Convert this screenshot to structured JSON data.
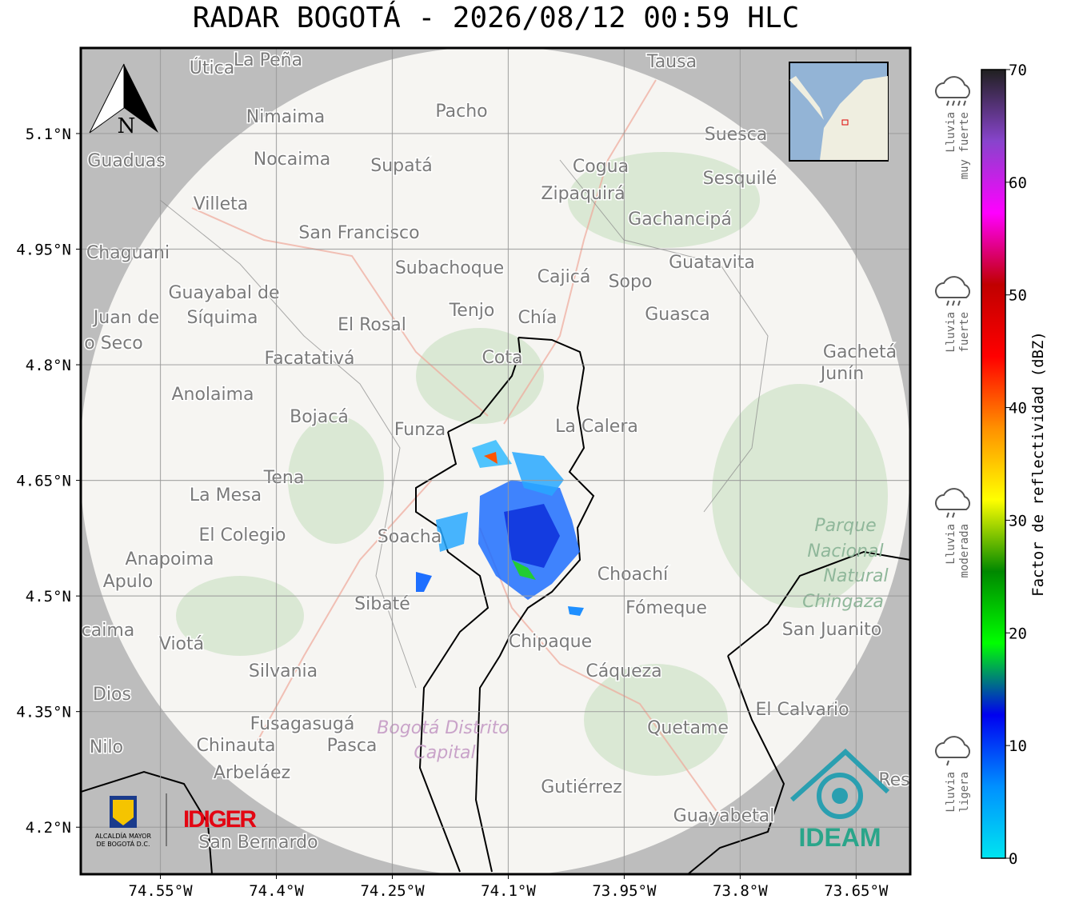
{
  "title": "RADAR BOGOTÁ - 2026/08/12 00:59 HLC",
  "compass": "N",
  "map": {
    "xlim": [
      -74.653,
      -73.58
    ],
    "ylim": [
      4.139,
      5.211
    ],
    "xticks": [
      {
        "value": -74.55,
        "label": "74.55°W"
      },
      {
        "value": -74.4,
        "label": "74.4°W"
      },
      {
        "value": -74.25,
        "label": "74.25°W"
      },
      {
        "value": -74.1,
        "label": "74.1°W"
      },
      {
        "value": -73.95,
        "label": "73.95°W"
      },
      {
        "value": -73.8,
        "label": "73.8°W"
      },
      {
        "value": -73.65,
        "label": "73.65°W"
      }
    ],
    "yticks": [
      {
        "value": 5.1,
        "label": "5.1°N"
      },
      {
        "value": 4.95,
        "label": "4.95°N"
      },
      {
        "value": 4.8,
        "label": "4.8°N"
      },
      {
        "value": 4.65,
        "label": "4.65°N"
      },
      {
        "value": 4.5,
        "label": "4.5°N"
      },
      {
        "value": 4.35,
        "label": "4.35°N"
      },
      {
        "value": 4.2,
        "label": "4.2°N"
      }
    ],
    "grid": true,
    "places": [
      "Útica",
      "La Peña",
      "Tausa",
      "Pacho",
      "Nimaima",
      "Guaduas",
      "Nocaima",
      "Supatá",
      "Cogua",
      "Suesca",
      "Sesquilé",
      "Zipaquirá",
      "Villeta",
      "Gachancipá",
      "San Francisco",
      "Chaguani",
      "Guatavita",
      "Subachoque",
      "Cajicá",
      "Sopo",
      "Guayabal de",
      "Síquima",
      "Juan de",
      "Tenjo",
      "Chía",
      "Guasca",
      "El Rosal",
      "o Seco",
      "Gachetá",
      "Junín",
      "Facatativá",
      "Cota",
      "Anolaima",
      "Bojacá",
      "Funza",
      "La Calera",
      "Tena",
      "La Mesa",
      "El Colegio",
      "Soacha",
      "Anapoima",
      "Choachí",
      "Apulo",
      "Sibaté",
      "Fómeque",
      "San Juanito",
      "caima",
      "Viotá",
      "Chipaque",
      "Silvania",
      "Cáqueza",
      "Dios",
      "El Calvario",
      "Fusagasugá",
      "Quetame",
      "Nilo",
      "Chinauta",
      "Pasca",
      "Arbeláez",
      "Gutiérrez",
      "Res",
      "Guayabetal",
      "San Bernardo"
    ],
    "parks": [
      "Parque",
      "Nacional",
      "Natural",
      "Chingaza"
    ],
    "district": [
      "Bogotá Distrito",
      "Capital"
    ]
  },
  "colorbar": {
    "label": "Factor de reflectividad (dBZ)",
    "lim": [
      0,
      70
    ],
    "ticks": [
      0,
      10,
      20,
      30,
      40,
      50,
      60,
      70
    ],
    "colors": [
      "#00e5f0",
      "#0090ff",
      "#0000f0",
      "#00ff00",
      "#008800",
      "#ffff00",
      "#ff9000",
      "#ff0000",
      "#c00000",
      "#ff00ff",
      "#8844cc",
      "#202020"
    ]
  },
  "legend": [
    [
      "Lluvia",
      "muy fuerte"
    ],
    [
      "Lluvia",
      "fuerte"
    ],
    [
      "Lluvia",
      "moderada"
    ],
    [
      "Lluvia",
      "ligera"
    ]
  ],
  "logos": {
    "alcaldia": [
      "ALCALDÍA MAYOR",
      "DE BOGOTÁ D.C."
    ],
    "idiger": "IDIGER",
    "ideam": "IDEAM"
  }
}
